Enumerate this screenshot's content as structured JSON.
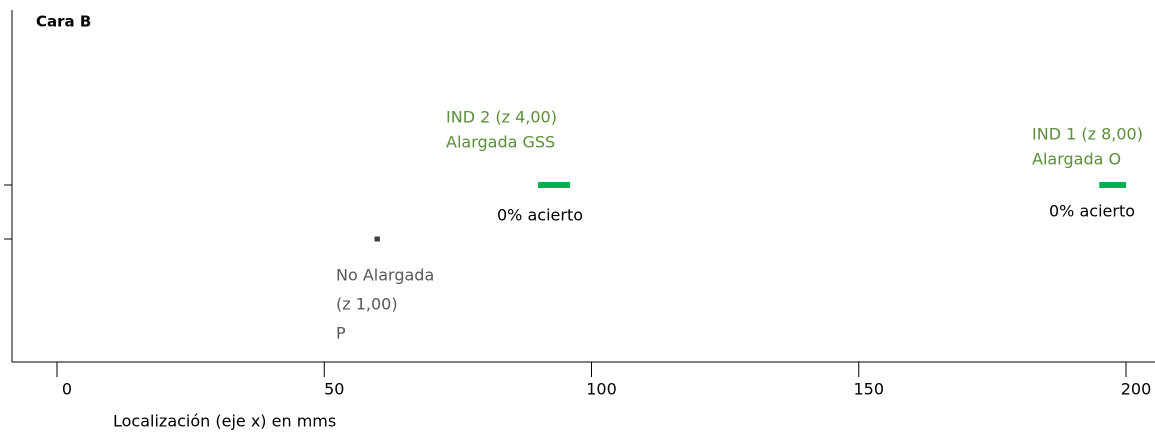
{
  "chart_data": {
    "type": "segment",
    "title": "Cara B",
    "xlabel": "Localización (eje x) en mms",
    "xlim": [
      0,
      200
    ],
    "xticks": [
      0,
      50,
      100,
      150,
      200
    ],
    "y_categories": [
      null,
      null
    ],
    "segments": [
      {
        "start": 90,
        "end": 96,
        "row": 0,
        "color": "#00b050",
        "label_color": "#5b8f3a",
        "labels": [
          "IND 2 (z 4,00)",
          "Alargada GSS"
        ],
        "note": "0% acierto"
      },
      {
        "start": 195,
        "end": 200,
        "row": 0,
        "color": "#00b050",
        "label_color": "#5b8f3a",
        "labels": [
          "IND 1 (z 8,00)",
          "Alargada O"
        ],
        "note": "0% acierto"
      },
      {
        "start": 59.5,
        "end": 60.5,
        "row": 1,
        "color": "#404040",
        "label_color": "#595959",
        "labels": [
          "No Alargada",
          "(z 1,00)",
          "P"
        ]
      }
    ]
  }
}
